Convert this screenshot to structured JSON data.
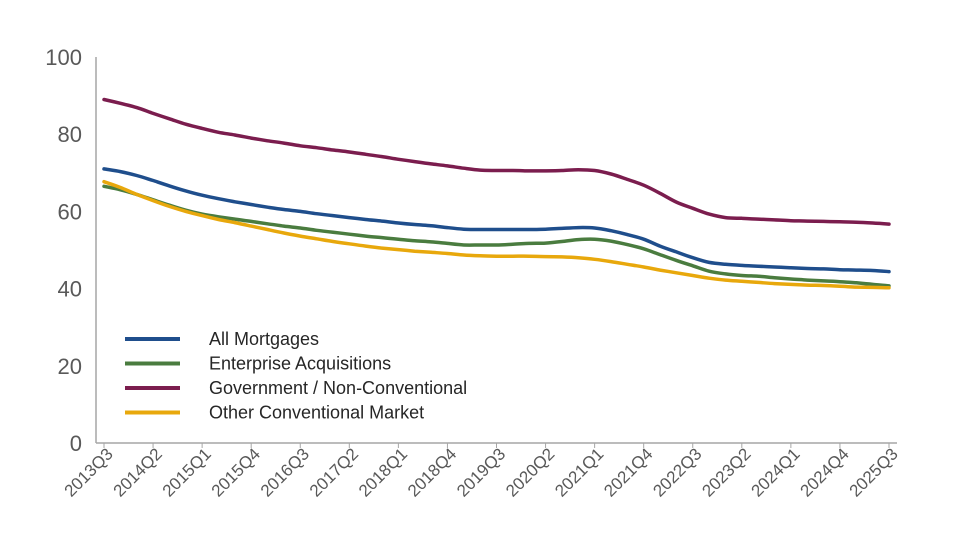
{
  "chart_data": {
    "type": "line",
    "ylim": [
      0,
      100
    ],
    "yticks": [
      0,
      20,
      40,
      60,
      80,
      100
    ],
    "grid": false,
    "legend_position": "bottom-left",
    "x": [
      "2013Q3",
      "2013Q4",
      "2014Q1",
      "2014Q2",
      "2014Q3",
      "2014Q4",
      "2015Q1",
      "2015Q2",
      "2015Q3",
      "2015Q4",
      "2016Q1",
      "2016Q2",
      "2016Q3",
      "2016Q4",
      "2017Q1",
      "2017Q2",
      "2017Q3",
      "2017Q4",
      "2018Q1",
      "2018Q2",
      "2018Q3",
      "2018Q4",
      "2019Q1",
      "2019Q2",
      "2019Q3",
      "2019Q4",
      "2020Q1",
      "2020Q2",
      "2020Q3",
      "2020Q4",
      "2021Q1",
      "2021Q2",
      "2021Q3",
      "2021Q4",
      "2022Q1",
      "2022Q2",
      "2022Q3",
      "2022Q4",
      "2023Q1",
      "2023Q2",
      "2023Q3",
      "2023Q4",
      "2024Q1",
      "2024Q2",
      "2024Q3",
      "2024Q4",
      "2025Q1",
      "2025Q2",
      "2025Q3"
    ],
    "xtick_labels": [
      "2013Q3",
      "2014Q2",
      "2015Q1",
      "2015Q4",
      "2016Q3",
      "2017Q2",
      "2018Q1",
      "2018Q4",
      "2019Q3",
      "2020Q2",
      "2021Q1",
      "2021Q4",
      "2022Q3",
      "2023Q2",
      "2024Q1",
      "2024Q4",
      "2025Q3"
    ],
    "series": [
      {
        "name": "All Mortgages",
        "color": "#1f4e8c",
        "values": [
          71,
          70.3,
          69.3,
          68,
          66.6,
          65.3,
          64.2,
          63.3,
          62.5,
          61.8,
          61.1,
          60.5,
          60,
          59.4,
          58.9,
          58.4,
          57.9,
          57.5,
          57,
          56.6,
          56.3,
          55.8,
          55.4,
          55.3,
          55.3,
          55.3,
          55.3,
          55.4,
          55.6,
          55.8,
          55.7,
          55,
          54,
          52.8,
          51,
          49.5,
          48,
          46.8,
          46.3,
          46,
          45.8,
          45.6,
          45.4,
          45.2,
          45.1,
          44.9,
          44.8,
          44.7,
          44.4
        ]
      },
      {
        "name": "Enterprise Acquisitions",
        "color": "#4a7c3f",
        "values": [
          66.5,
          65.6,
          64.4,
          63,
          61.6,
          60.3,
          59.3,
          58.6,
          58,
          57.4,
          56.8,
          56.2,
          55.7,
          55.1,
          54.6,
          54.1,
          53.6,
          53.2,
          52.8,
          52.4,
          52.1,
          51.7,
          51.3,
          51.3,
          51.3,
          51.5,
          51.7,
          51.8,
          52.2,
          52.7,
          52.8,
          52.3,
          51.4,
          50.3,
          48.8,
          47.3,
          45.9,
          44.5,
          43.8,
          43.4,
          43.2,
          42.8,
          42.5,
          42.2,
          42,
          41.8,
          41.5,
          41.1,
          40.7
        ]
      },
      {
        "name": "Government / Non-Conventional",
        "color": "#7b1d4e",
        "values": [
          89,
          88,
          86.9,
          85.4,
          84,
          82.6,
          81.5,
          80.5,
          79.8,
          79,
          78.3,
          77.7,
          77,
          76.5,
          75.9,
          75.4,
          74.8,
          74.2,
          73.5,
          72.9,
          72.3,
          71.8,
          71.2,
          70.7,
          70.6,
          70.6,
          70.5,
          70.5,
          70.6,
          70.8,
          70.6,
          69.7,
          68.3,
          66.8,
          64.7,
          62.4,
          60.8,
          59.3,
          58.4,
          58.2,
          58,
          57.8,
          57.6,
          57.5,
          57.4,
          57.3,
          57.2,
          57,
          56.7
        ]
      },
      {
        "name": "Other Conventional Market",
        "color": "#e8a80c",
        "values": [
          67.7,
          66.2,
          64.4,
          62.8,
          61.3,
          60,
          58.9,
          57.9,
          57.1,
          56.2,
          55.3,
          54.4,
          53.6,
          52.9,
          52.2,
          51.6,
          51,
          50.5,
          50.1,
          49.7,
          49.4,
          49.1,
          48.7,
          48.5,
          48.4,
          48.4,
          48.4,
          48.3,
          48.2,
          48,
          47.6,
          47,
          46.3,
          45.6,
          44.8,
          44.1,
          43.4,
          42.7,
          42.2,
          41.9,
          41.6,
          41.3,
          41.1,
          40.9,
          40.8,
          40.6,
          40.4,
          40.3,
          40.2
        ]
      }
    ]
  }
}
